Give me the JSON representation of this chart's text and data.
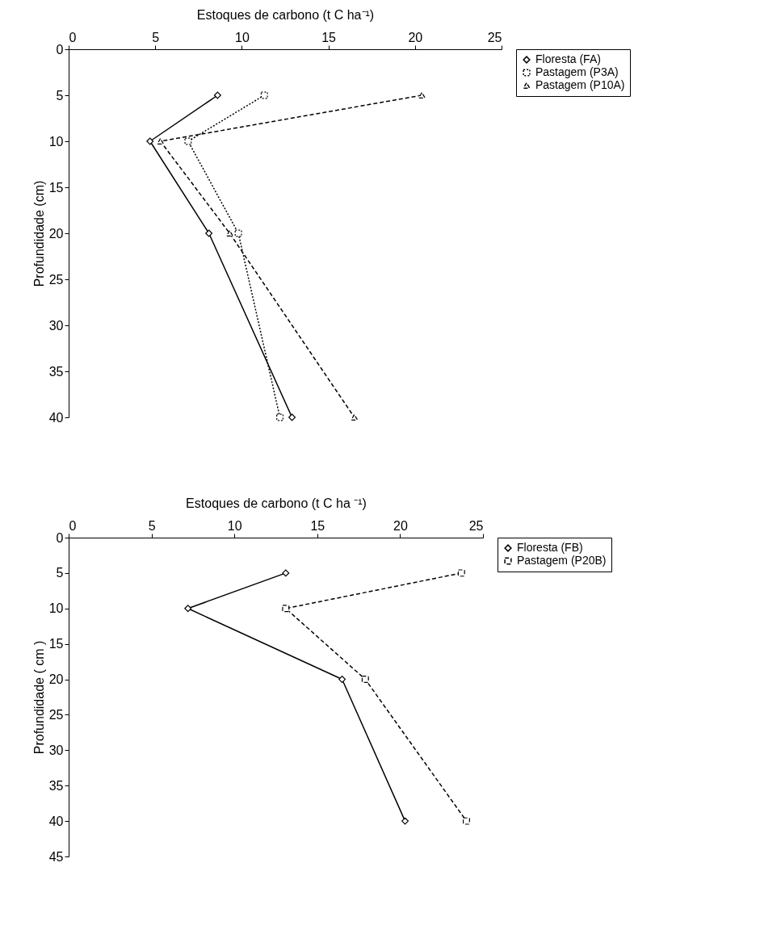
{
  "chart_data": [
    {
      "type": "line",
      "xlabel": "Estoques de carbono (t C ha⁻¹)",
      "ylabel": "Profundidade (cm)",
      "xlim": [
        0,
        25
      ],
      "xticks": [
        0,
        5,
        10,
        15,
        20,
        25
      ],
      "ylim": [
        40,
        0
      ],
      "yticks": [
        0,
        5,
        10,
        15,
        20,
        25,
        30,
        35,
        40
      ],
      "grid": false,
      "legend": "right",
      "series": [
        {
          "name": "Floresta (FA)",
          "color": "#000000",
          "marker": "diamond",
          "line_style": "solid",
          "x": [
            8.6,
            4.7,
            8.1,
            12.9
          ],
          "values": [
            5,
            10,
            20,
            40
          ]
        },
        {
          "name": "Pastagem (P3A)",
          "color": "#000000",
          "marker": "square",
          "line_style": "dotted",
          "x": [
            11.3,
            6.9,
            9.8,
            12.2
          ],
          "values": [
            5,
            10,
            20,
            40
          ]
        },
        {
          "name": "Pastagem (P10A)",
          "color": "#000000",
          "marker": "triangle",
          "line_style": "dashed",
          "x": [
            20.4,
            5.3,
            9.3,
            16.5
          ],
          "values": [
            5,
            10,
            20,
            40
          ]
        }
      ]
    },
    {
      "type": "line",
      "xlabel": "Estoques de carbono (t C ha ⁻¹)",
      "ylabel": "Profundidade ( cm )",
      "xlim": [
        0,
        25
      ],
      "xticks": [
        0,
        5,
        10,
        15,
        20,
        25
      ],
      "ylim": [
        45,
        0
      ],
      "yticks": [
        0,
        5,
        10,
        15,
        20,
        25,
        30,
        35,
        40,
        45
      ],
      "grid": false,
      "legend": "right",
      "series": [
        {
          "name": "Floresta (FB)",
          "color": "#000000",
          "marker": "diamond",
          "line_style": "solid",
          "x": [
            13.1,
            7.2,
            16.5,
            20.3
          ],
          "values": [
            5,
            10,
            20,
            40
          ]
        },
        {
          "name": "Pastagem (P20B)",
          "color": "#000000",
          "marker": "square",
          "line_style": "dashed",
          "x": [
            23.7,
            13.1,
            17.9,
            24.0
          ],
          "values": [
            5,
            10,
            20,
            40
          ]
        }
      ]
    }
  ]
}
